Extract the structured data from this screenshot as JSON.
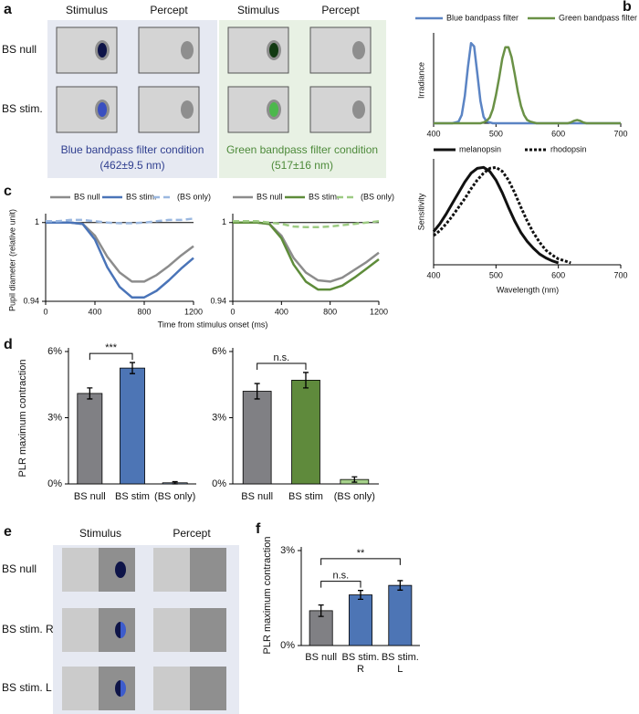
{
  "panel_labels": [
    "a",
    "b",
    "c",
    "d",
    "e",
    "f"
  ],
  "diagram_a": {
    "columns": [
      "Stimulus",
      "Percept",
      "Stimulus",
      "Percept"
    ],
    "rows": [
      "BS null",
      "BS stim."
    ],
    "captions": [
      [
        "Blue bandpass filter condition",
        "(462±9.5 nm)"
      ],
      [
        "Green bandpass filter condition",
        "(517±16 nm)"
      ]
    ]
  },
  "diagram_e": {
    "columns": [
      "Stimulus",
      "Percept"
    ],
    "rows": [
      "BS null",
      "BS stim. R",
      "BS stim. L"
    ]
  },
  "chart_data": [
    {
      "type": "line",
      "ylabel": "Irradiance",
      "xlim": [
        400,
        700
      ],
      "ylim": [
        0,
        1.05
      ],
      "xticks": [
        400,
        500,
        600,
        700
      ],
      "x": [
        400,
        405,
        410,
        415,
        420,
        425,
        430,
        435,
        440,
        445,
        450,
        455,
        460,
        465,
        470,
        475,
        480,
        485,
        490,
        495,
        500,
        505,
        510,
        515,
        520,
        525,
        530,
        535,
        540,
        545,
        550,
        555,
        560,
        565,
        570,
        575,
        580,
        585,
        590,
        595,
        600,
        605,
        610,
        615,
        620,
        625,
        630,
        635,
        640,
        645,
        650,
        655,
        660,
        665,
        670,
        675,
        680,
        685,
        690,
        695,
        700
      ],
      "series": [
        {
          "name": "Blue bandpass filter",
          "color": "#5b84c4",
          "values": [
            0,
            0,
            0,
            0,
            0,
            0,
            0,
            0.01,
            0.02,
            0.1,
            0.33,
            0.68,
            0.97,
            0.93,
            0.61,
            0.27,
            0.08,
            0.02,
            0.01,
            0,
            0,
            0,
            0,
            0,
            0,
            0,
            0,
            0,
            0,
            0,
            0,
            0,
            0,
            0,
            0,
            0,
            0,
            0,
            0,
            0,
            0,
            0,
            0,
            0,
            0,
            0,
            0,
            0,
            0,
            0,
            0,
            0,
            0,
            0,
            0,
            0,
            0,
            0,
            0,
            0,
            0
          ]
        },
        {
          "name": "Green bandpass filter",
          "color": "#6a9146",
          "values": [
            0,
            0,
            0,
            0,
            0,
            0,
            0,
            0,
            0,
            0,
            0,
            0,
            0,
            0,
            0,
            0,
            0.01,
            0.03,
            0.07,
            0.17,
            0.34,
            0.55,
            0.78,
            0.92,
            0.92,
            0.8,
            0.6,
            0.38,
            0.21,
            0.1,
            0.04,
            0.02,
            0.01,
            0,
            0,
            0,
            0,
            0,
            0,
            0,
            0,
            0,
            0,
            0,
            0.01,
            0.03,
            0.04,
            0.03,
            0.01,
            0,
            0,
            0,
            0,
            0,
            0,
            0,
            0,
            0,
            0,
            0,
            0
          ]
        }
      ]
    },
    {
      "type": "line",
      "ylabel": "Sensitivity",
      "xlabel": "Wavelength (nm)",
      "xlim": [
        400,
        700
      ],
      "ylim": [
        0,
        1.05
      ],
      "xticks": [
        400,
        500,
        600,
        700
      ],
      "x": [
        400,
        410,
        420,
        430,
        440,
        450,
        460,
        470,
        480,
        490,
        500,
        510,
        520,
        530,
        540,
        550,
        560,
        570,
        580,
        590,
        600,
        610,
        620
      ],
      "series": [
        {
          "name": "melanopsin",
          "color": "#111111",
          "values": [
            0.34,
            0.42,
            0.52,
            0.63,
            0.74,
            0.85,
            0.94,
            0.99,
            1.0,
            0.96,
            0.87,
            0.74,
            0.59,
            0.45,
            0.33,
            0.24,
            0.17,
            0.11,
            0.07,
            0.04,
            0.02,
            null,
            null
          ]
        },
        {
          "name": "rhodopsin",
          "color": "#111111",
          "style": "dotted",
          "values": [
            0.3,
            0.35,
            0.42,
            0.5,
            0.59,
            0.68,
            0.78,
            0.87,
            0.94,
            0.99,
            1.0,
            0.96,
            0.87,
            0.74,
            0.59,
            0.45,
            0.33,
            0.23,
            0.15,
            0.1,
            0.06,
            0.04,
            0.02
          ]
        }
      ]
    },
    {
      "type": "line",
      "ylabel": "Pupil diameter (relative unit)",
      "xlabel": "Time from stimulus onset (ms)",
      "xlim": [
        0,
        1200
      ],
      "ylim": [
        0.94,
        1.004
      ],
      "xticks": [
        0,
        400,
        800,
        1200
      ],
      "yticks": [
        0.94,
        1
      ],
      "reference_line": 1,
      "x": [
        0,
        100,
        200,
        300,
        400,
        500,
        600,
        700,
        800,
        900,
        1000,
        1100,
        1200
      ],
      "series": [
        {
          "name": "BS null",
          "color": "#8c8c8c",
          "values": [
            1,
            1,
            1,
            0.999,
            0.99,
            0.974,
            0.962,
            0.955,
            0.955,
            0.96,
            0.967,
            0.975,
            0.982
          ]
        },
        {
          "name": "BS stim.",
          "color": "#4a74b8",
          "values": [
            1,
            1,
            1,
            0.999,
            0.987,
            0.966,
            0.951,
            0.943,
            0.943,
            0.948,
            0.956,
            0.965,
            0.973
          ]
        },
        {
          "name": "(BS only)",
          "color": "#9bb8e0",
          "style": "dashed",
          "values": [
            1.001,
            1.001,
            1.002,
            1.002,
            1.001,
            1.0,
            0.9995,
            0.9995,
            1.0,
            1.001,
            1.002,
            1.002,
            1.003
          ]
        }
      ]
    },
    {
      "type": "line",
      "xlim": [
        0,
        1200
      ],
      "ylim": [
        0.94,
        1.004
      ],
      "xticks": [
        0,
        400,
        800,
        1200
      ],
      "yticks": [
        0.94,
        1
      ],
      "reference_line": 1,
      "x": [
        0,
        100,
        200,
        300,
        400,
        500,
        600,
        700,
        800,
        900,
        1000,
        1100,
        1200
      ],
      "series": [
        {
          "name": "BS null",
          "color": "#8c8c8c",
          "values": [
            1,
            1,
            1,
            0.999,
            0.99,
            0.973,
            0.962,
            0.956,
            0.955,
            0.958,
            0.964,
            0.97,
            0.977
          ]
        },
        {
          "name": "BS stim.",
          "color": "#5e8c3a",
          "values": [
            1,
            1,
            1,
            0.999,
            0.988,
            0.968,
            0.955,
            0.949,
            0.949,
            0.952,
            0.958,
            0.965,
            0.972
          ]
        },
        {
          "name": "(BS only)",
          "color": "#9dcb83",
          "style": "dashed",
          "values": [
            1.001,
            1.001,
            1.001,
            1.0,
            0.999,
            0.997,
            0.9965,
            0.9965,
            0.997,
            0.998,
            0.999,
            1.0,
            1.001
          ]
        }
      ]
    },
    {
      "type": "bar",
      "ylabel": "PLR maximum contraction",
      "categories": [
        "BS null",
        "BS stim",
        "(BS only)"
      ],
      "values": [
        4.1,
        5.25,
        0.05
      ],
      "errors": [
        0.25,
        0.25,
        0.05
      ],
      "colors": [
        "#808084",
        "#4d75b5",
        "#a4bfe2"
      ],
      "ylim": [
        0,
        6
      ],
      "yticks": [
        {
          "value": 0,
          "label": "0%"
        },
        {
          "value": 3,
          "label": "3%"
        },
        {
          "value": 6,
          "label": "6%"
        }
      ],
      "annotations": [
        {
          "text": "***",
          "from": 0,
          "to": 1
        }
      ]
    },
    {
      "type": "bar",
      "categories": [
        "BS null",
        "BS stim",
        "(BS only)"
      ],
      "values": [
        4.2,
        4.7,
        0.2
      ],
      "errors": [
        0.35,
        0.35,
        0.12
      ],
      "colors": [
        "#808084",
        "#5f8a3c",
        "#a6d18b"
      ],
      "ylim": [
        0,
        6
      ],
      "yticks": [
        {
          "value": 0,
          "label": "0%"
        },
        {
          "value": 3,
          "label": "3%"
        },
        {
          "value": 6,
          "label": "6%"
        }
      ],
      "annotations": [
        {
          "text": "n.s.",
          "from": 0,
          "to": 1
        }
      ]
    },
    {
      "type": "bar",
      "ylabel": "PLR maximum contraction",
      "categories": [
        [
          "BS null"
        ],
        [
          "BS stim.",
          "R"
        ],
        [
          "BS stim.",
          "L"
        ]
      ],
      "values": [
        1.1,
        1.6,
        1.9
      ],
      "errors": [
        0.18,
        0.14,
        0.15
      ],
      "colors": [
        "#808084",
        "#4d75b5",
        "#4d75b5"
      ],
      "ylim": [
        0,
        3
      ],
      "yticks": [
        {
          "value": 0,
          "label": "0%"
        },
        {
          "value": 3,
          "label": "3%"
        }
      ],
      "annotations": [
        {
          "text": "n.s.",
          "from": 0,
          "to": 1
        },
        {
          "text": "**",
          "from": 0,
          "to": 2
        }
      ]
    }
  ]
}
